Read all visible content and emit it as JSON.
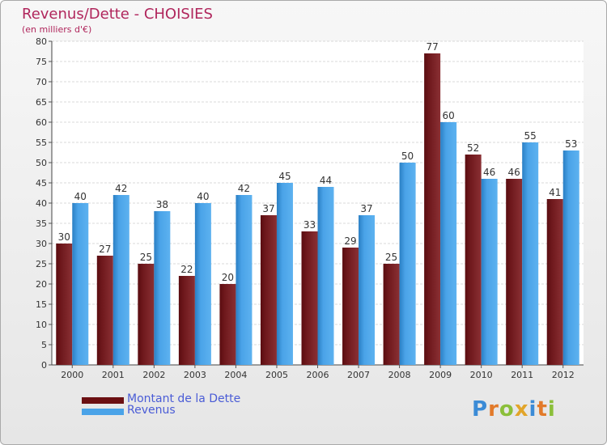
{
  "title": "Revenus/Dette - CHOISIES",
  "subtitle": "(en milliers d'€)",
  "chart_data": {
    "type": "bar",
    "categories": [
      "2000",
      "2001",
      "2002",
      "2003",
      "2004",
      "2005",
      "2006",
      "2007",
      "2008",
      "2009",
      "2010",
      "2011",
      "2012"
    ],
    "series": [
      {
        "name": "Montant de la Dette",
        "color": "#7a1e22",
        "values": [
          30,
          27,
          25,
          22,
          20,
          37,
          33,
          29,
          25,
          77,
          52,
          46,
          41
        ]
      },
      {
        "name": "Revenus",
        "color": "#4aa3e8",
        "values": [
          40,
          42,
          38,
          40,
          42,
          45,
          44,
          37,
          50,
          60,
          46,
          55,
          53
        ]
      }
    ],
    "ylim": [
      0,
      80
    ],
    "ytick_step": 5,
    "grid": true,
    "data_labels": true,
    "legend": "bottom-left"
  },
  "legend": [
    {
      "label": "Montant de la Dette",
      "color": "#6b0f12"
    },
    {
      "label": "Revenus",
      "color": "#4aa3e8"
    }
  ],
  "logo": {
    "text": "Proxiti",
    "letter_colors": [
      "#3b8bd6",
      "#e27a2a",
      "#8bbf3a",
      "#e2a52a",
      "#3b8bd6",
      "#e27a2a",
      "#8bbf3a"
    ]
  }
}
